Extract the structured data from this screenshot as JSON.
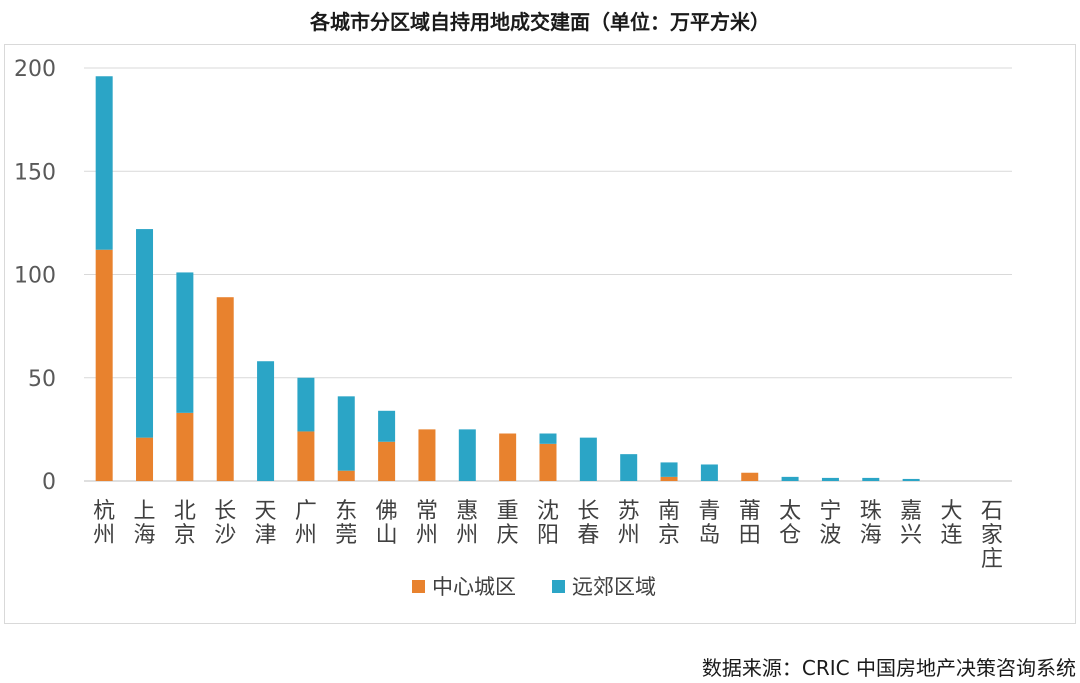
{
  "chart_data": {
    "type": "bar",
    "stacked": true,
    "title": "各城市分区域自持用地成交建面（单位：万平方米）",
    "categories": [
      "杭州",
      "上海",
      "北京",
      "长沙",
      "天津",
      "广州",
      "东莞",
      "佛山",
      "常州",
      "惠州",
      "重庆",
      "沈阳",
      "长春",
      "苏州",
      "南京",
      "青岛",
      "莆田",
      "太仓",
      "宁波",
      "珠海",
      "嘉兴",
      "大连",
      "石家庄"
    ],
    "series": [
      {
        "name": "中心城区",
        "color": "#e8822e",
        "values": [
          112,
          21,
          33,
          89,
          0,
          24,
          5,
          19,
          25,
          0,
          23,
          18,
          0,
          0,
          2,
          0,
          4,
          0,
          0,
          0,
          0,
          0,
          0
        ]
      },
      {
        "name": "远郊区域",
        "color": "#2ba5c6",
        "values": [
          84,
          101,
          68,
          0,
          58,
          26,
          36,
          15,
          0,
          25,
          0,
          5,
          21,
          13,
          7,
          8,
          0,
          2,
          1.5,
          1.5,
          1,
          0,
          0
        ]
      }
    ],
    "yticks": [
      "200",
      "150",
      "100",
      "50",
      "0"
    ],
    "ylim": [
      0,
      200
    ],
    "grid": true,
    "legend": "bottom"
  },
  "source": "数据来源：CRIC 中国房地产决策咨询系统"
}
